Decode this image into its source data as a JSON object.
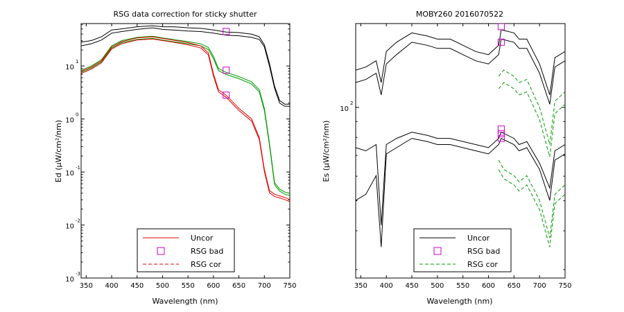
{
  "chart_data": [
    {
      "type": "line",
      "title": "RSG data correction for sticky shutter",
      "xlabel": "Wavelength (nm)",
      "ylabel": "Ed (µW/cm²/nm)",
      "xlim": [
        340,
        750
      ],
      "xticks": [
        350,
        400,
        450,
        500,
        550,
        600,
        650,
        700,
        750
      ],
      "ylim_log10": [
        -3,
        1.8
      ],
      "yscale": "log",
      "ytick_exponents": [
        -3,
        -2,
        -1,
        0,
        1
      ],
      "ytick_bases": [
        "10",
        "10",
        "10",
        "10",
        "10"
      ],
      "ytick_exps": [
        "-3",
        "-2",
        "-1",
        "0",
        "1"
      ],
      "legend": {
        "placement": "bottom-center",
        "entries": [
          {
            "label": "Uncor",
            "color": "#e00000",
            "style": "solid"
          },
          {
            "label": "RSG bad",
            "color": "#cc00cc",
            "style": "square"
          },
          {
            "label": "RSG cor",
            "color": "#e00000",
            "style": "dashed"
          }
        ]
      },
      "series": [
        {
          "color": "#000000",
          "style": "solid",
          "x": [
            340,
            360,
            380,
            400,
            420,
            450,
            480,
            500,
            520,
            550,
            575,
            600,
            625,
            650,
            675,
            690,
            700,
            710,
            720,
            730,
            740,
            750
          ],
          "y": [
            1.45,
            1.48,
            1.55,
            1.68,
            1.7,
            1.74,
            1.76,
            1.74,
            1.74,
            1.72,
            1.71,
            1.68,
            1.64,
            1.63,
            1.6,
            1.55,
            1.4,
            1.05,
            0.62,
            0.35,
            0.28,
            0.28
          ]
        },
        {
          "color": "#000000",
          "style": "solid",
          "x": [
            340,
            360,
            380,
            400,
            420,
            450,
            480,
            500,
            520,
            550,
            575,
            600,
            625,
            650,
            675,
            690,
            700,
            710,
            720,
            730,
            740,
            750
          ],
          "y": [
            1.38,
            1.42,
            1.49,
            1.62,
            1.65,
            1.69,
            1.72,
            1.69,
            1.68,
            1.66,
            1.65,
            1.62,
            1.58,
            1.57,
            1.54,
            1.5,
            1.36,
            1.0,
            0.58,
            0.3,
            0.24,
            0.24
          ]
        },
        {
          "color": "#009900",
          "style": "solid",
          "x": [
            340,
            360,
            380,
            400,
            420,
            450,
            480,
            500,
            520,
            550,
            575,
            590,
            600,
            610,
            625,
            650,
            675,
            690,
            700,
            710,
            720,
            730,
            740,
            750
          ],
          "y": [
            0.92,
            1.0,
            1.12,
            1.38,
            1.48,
            1.54,
            1.56,
            1.53,
            1.5,
            1.46,
            1.42,
            1.35,
            1.18,
            0.95,
            0.88,
            0.8,
            0.7,
            0.55,
            0.2,
            -0.45,
            -1.2,
            -1.32,
            -1.38,
            -1.4
          ]
        },
        {
          "color": "#009900",
          "style": "solid",
          "x": [
            340,
            360,
            380,
            400,
            420,
            450,
            480,
            500,
            520,
            550,
            575,
            590,
            600,
            610,
            625,
            650,
            675,
            690,
            700,
            710,
            720,
            730,
            740,
            750
          ],
          "y": [
            0.88,
            0.96,
            1.08,
            1.34,
            1.44,
            1.5,
            1.52,
            1.49,
            1.46,
            1.42,
            1.38,
            1.31,
            1.14,
            0.91,
            0.84,
            0.76,
            0.66,
            0.51,
            0.16,
            -0.49,
            -1.24,
            -1.36,
            -1.42,
            -1.44
          ]
        },
        {
          "color": "#e00000",
          "style": "solid",
          "x": [
            340,
            360,
            380,
            400,
            420,
            450,
            480,
            500,
            520,
            550,
            575,
            590,
            600,
            610,
            625,
            650,
            675,
            690,
            700,
            710,
            720,
            730,
            740,
            750
          ],
          "y": [
            0.9,
            0.98,
            1.1,
            1.36,
            1.46,
            1.53,
            1.55,
            1.52,
            1.49,
            1.44,
            1.38,
            1.25,
            0.85,
            0.55,
            0.45,
            0.2,
            0.0,
            -0.35,
            -0.95,
            -1.35,
            -1.42,
            -1.45,
            -1.48,
            -1.52
          ]
        },
        {
          "color": "#e00000",
          "style": "solid",
          "x": [
            340,
            360,
            380,
            400,
            420,
            450,
            480,
            500,
            520,
            550,
            575,
            590,
            600,
            610,
            625,
            650,
            675,
            690,
            700,
            710,
            720,
            730,
            740,
            750
          ],
          "y": [
            0.86,
            0.94,
            1.06,
            1.32,
            1.42,
            1.49,
            1.51,
            1.48,
            1.45,
            1.4,
            1.34,
            1.21,
            0.81,
            0.51,
            0.41,
            0.16,
            -0.04,
            -0.39,
            -0.99,
            -1.39,
            -1.46,
            -1.49,
            -1.52,
            -1.56
          ]
        }
      ],
      "rsg_bad_points": {
        "x": [
          625,
          625,
          625
        ],
        "y": [
          1.65,
          0.92,
          0.45
        ]
      }
    },
    {
      "type": "line",
      "title": "MOBY260  2016070522",
      "xlabel": "Wavelength (nm)",
      "ylabel": "Es (µW/cm²/nm)",
      "xlim": [
        340,
        750
      ],
      "xticks": [
        350,
        400,
        450,
        500,
        550,
        600,
        650,
        700,
        750
      ],
      "ylim_log10": [
        1.45,
        2.27
      ],
      "yscale": "log",
      "ytick_exponents": [
        2
      ],
      "ytick_bases": [
        "10"
      ],
      "ytick_exps": [
        "2"
      ],
      "legend": {
        "placement": "bottom-center",
        "entries": [
          {
            "label": "Uncor",
            "color": "#000000",
            "style": "solid"
          },
          {
            "label": "RSG bad",
            "color": "#cc00cc",
            "style": "square"
          },
          {
            "label": "RSG cor",
            "color": "#009900",
            "style": "dashed"
          }
        ]
      },
      "series": [
        {
          "color": "#000000",
          "style": "solid",
          "x": [
            340,
            360,
            380,
            390,
            400,
            420,
            450,
            480,
            500,
            525,
            550,
            575,
            600,
            620,
            625,
            650,
            660,
            675,
            700,
            720,
            730,
            750
          ],
          "y": [
            2.12,
            2.13,
            2.15,
            2.08,
            2.18,
            2.21,
            2.24,
            2.23,
            2.22,
            2.22,
            2.2,
            2.18,
            2.17,
            2.2,
            2.25,
            2.24,
            2.22,
            2.22,
            2.14,
            2.04,
            2.16,
            2.18
          ]
        },
        {
          "color": "#000000",
          "style": "solid",
          "x": [
            340,
            360,
            380,
            390,
            400,
            420,
            450,
            480,
            500,
            525,
            550,
            575,
            600,
            620,
            625,
            650,
            660,
            675,
            700,
            720,
            730,
            750
          ],
          "y": [
            2.08,
            2.09,
            2.11,
            2.04,
            2.14,
            2.17,
            2.21,
            2.2,
            2.19,
            2.19,
            2.17,
            2.15,
            2.14,
            2.17,
            2.22,
            2.21,
            2.19,
            2.19,
            2.11,
            2.01,
            2.13,
            2.15
          ]
        },
        {
          "color": "#000000",
          "style": "solid",
          "x": [
            340,
            360,
            380,
            390,
            400,
            420,
            450,
            480,
            500,
            525,
            550,
            575,
            600,
            620,
            625,
            650,
            660,
            675,
            700,
            720,
            730,
            750
          ],
          "y": [
            1.87,
            1.86,
            1.88,
            1.62,
            1.88,
            1.9,
            1.92,
            1.91,
            1.9,
            1.9,
            1.89,
            1.88,
            1.87,
            1.9,
            1.92,
            1.9,
            1.88,
            1.89,
            1.82,
            1.74,
            1.86,
            1.88
          ]
        },
        {
          "color": "#000000",
          "style": "solid",
          "x": [
            340,
            360,
            380,
            390,
            400,
            420,
            450,
            480,
            500,
            525,
            550,
            575,
            600,
            620,
            625,
            650,
            660,
            675,
            700,
            720,
            730,
            750
          ],
          "y": [
            1.7,
            1.72,
            1.78,
            1.55,
            1.85,
            1.87,
            1.9,
            1.89,
            1.88,
            1.88,
            1.87,
            1.86,
            1.85,
            1.88,
            1.9,
            1.88,
            1.86,
            1.87,
            1.8,
            1.7,
            1.83,
            1.85
          ]
        },
        {
          "color": "#009900",
          "style": "dashed",
          "x": [
            620,
            630,
            650,
            660,
            675,
            700,
            720,
            730,
            750
          ],
          "y": [
            2.1,
            2.12,
            2.1,
            2.08,
            2.09,
            2.0,
            1.88,
            2.02,
            2.05
          ]
        },
        {
          "color": "#009900",
          "style": "dashed",
          "x": [
            620,
            630,
            650,
            660,
            675,
            700,
            720,
            730,
            750
          ],
          "y": [
            2.06,
            2.08,
            2.06,
            2.04,
            2.05,
            1.96,
            1.84,
            1.98,
            2.01
          ]
        },
        {
          "color": "#009900",
          "style": "dashed",
          "x": [
            620,
            630,
            650,
            660,
            675,
            700,
            720,
            730,
            750
          ],
          "y": [
            1.83,
            1.8,
            1.78,
            1.76,
            1.78,
            1.7,
            1.58,
            1.72,
            1.75
          ]
        },
        {
          "color": "#009900",
          "style": "dashed",
          "x": [
            620,
            630,
            650,
            660,
            675,
            700,
            720,
            730,
            750
          ],
          "y": [
            1.8,
            1.77,
            1.75,
            1.73,
            1.75,
            1.67,
            1.55,
            1.69,
            1.72
          ]
        }
      ],
      "rsg_bad_points": {
        "x": [
          625,
          625,
          625,
          625,
          625
        ],
        "y": [
          2.26,
          2.21,
          1.93,
          1.915,
          1.9
        ]
      }
    }
  ]
}
